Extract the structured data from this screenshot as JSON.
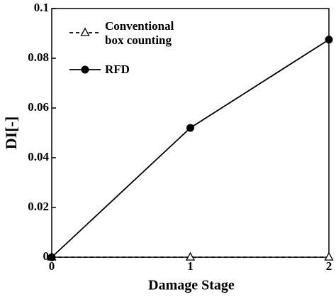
{
  "chart_data": {
    "type": "line",
    "x": [
      0,
      1,
      2
    ],
    "xlabel": "Damage Stage",
    "ylabel": "DI[-]",
    "xlim": [
      0,
      2
    ],
    "xticks": [
      0,
      1,
      2
    ],
    "ylim": [
      0,
      0.1
    ],
    "yticks": [
      0,
      0.02,
      0.04,
      0.06,
      0.08,
      0.1
    ],
    "legend": "upper-left",
    "series": [
      {
        "name": "Conventional box counting",
        "color": "#000000",
        "linestyle": "dashed",
        "marker": "triangle-open",
        "values": [
          0,
          0,
          0
        ]
      },
      {
        "name": "RFD",
        "color": "#000000",
        "linestyle": "solid",
        "marker": "circle-filled",
        "values": [
          0,
          0.052,
          0.0875
        ]
      }
    ]
  }
}
